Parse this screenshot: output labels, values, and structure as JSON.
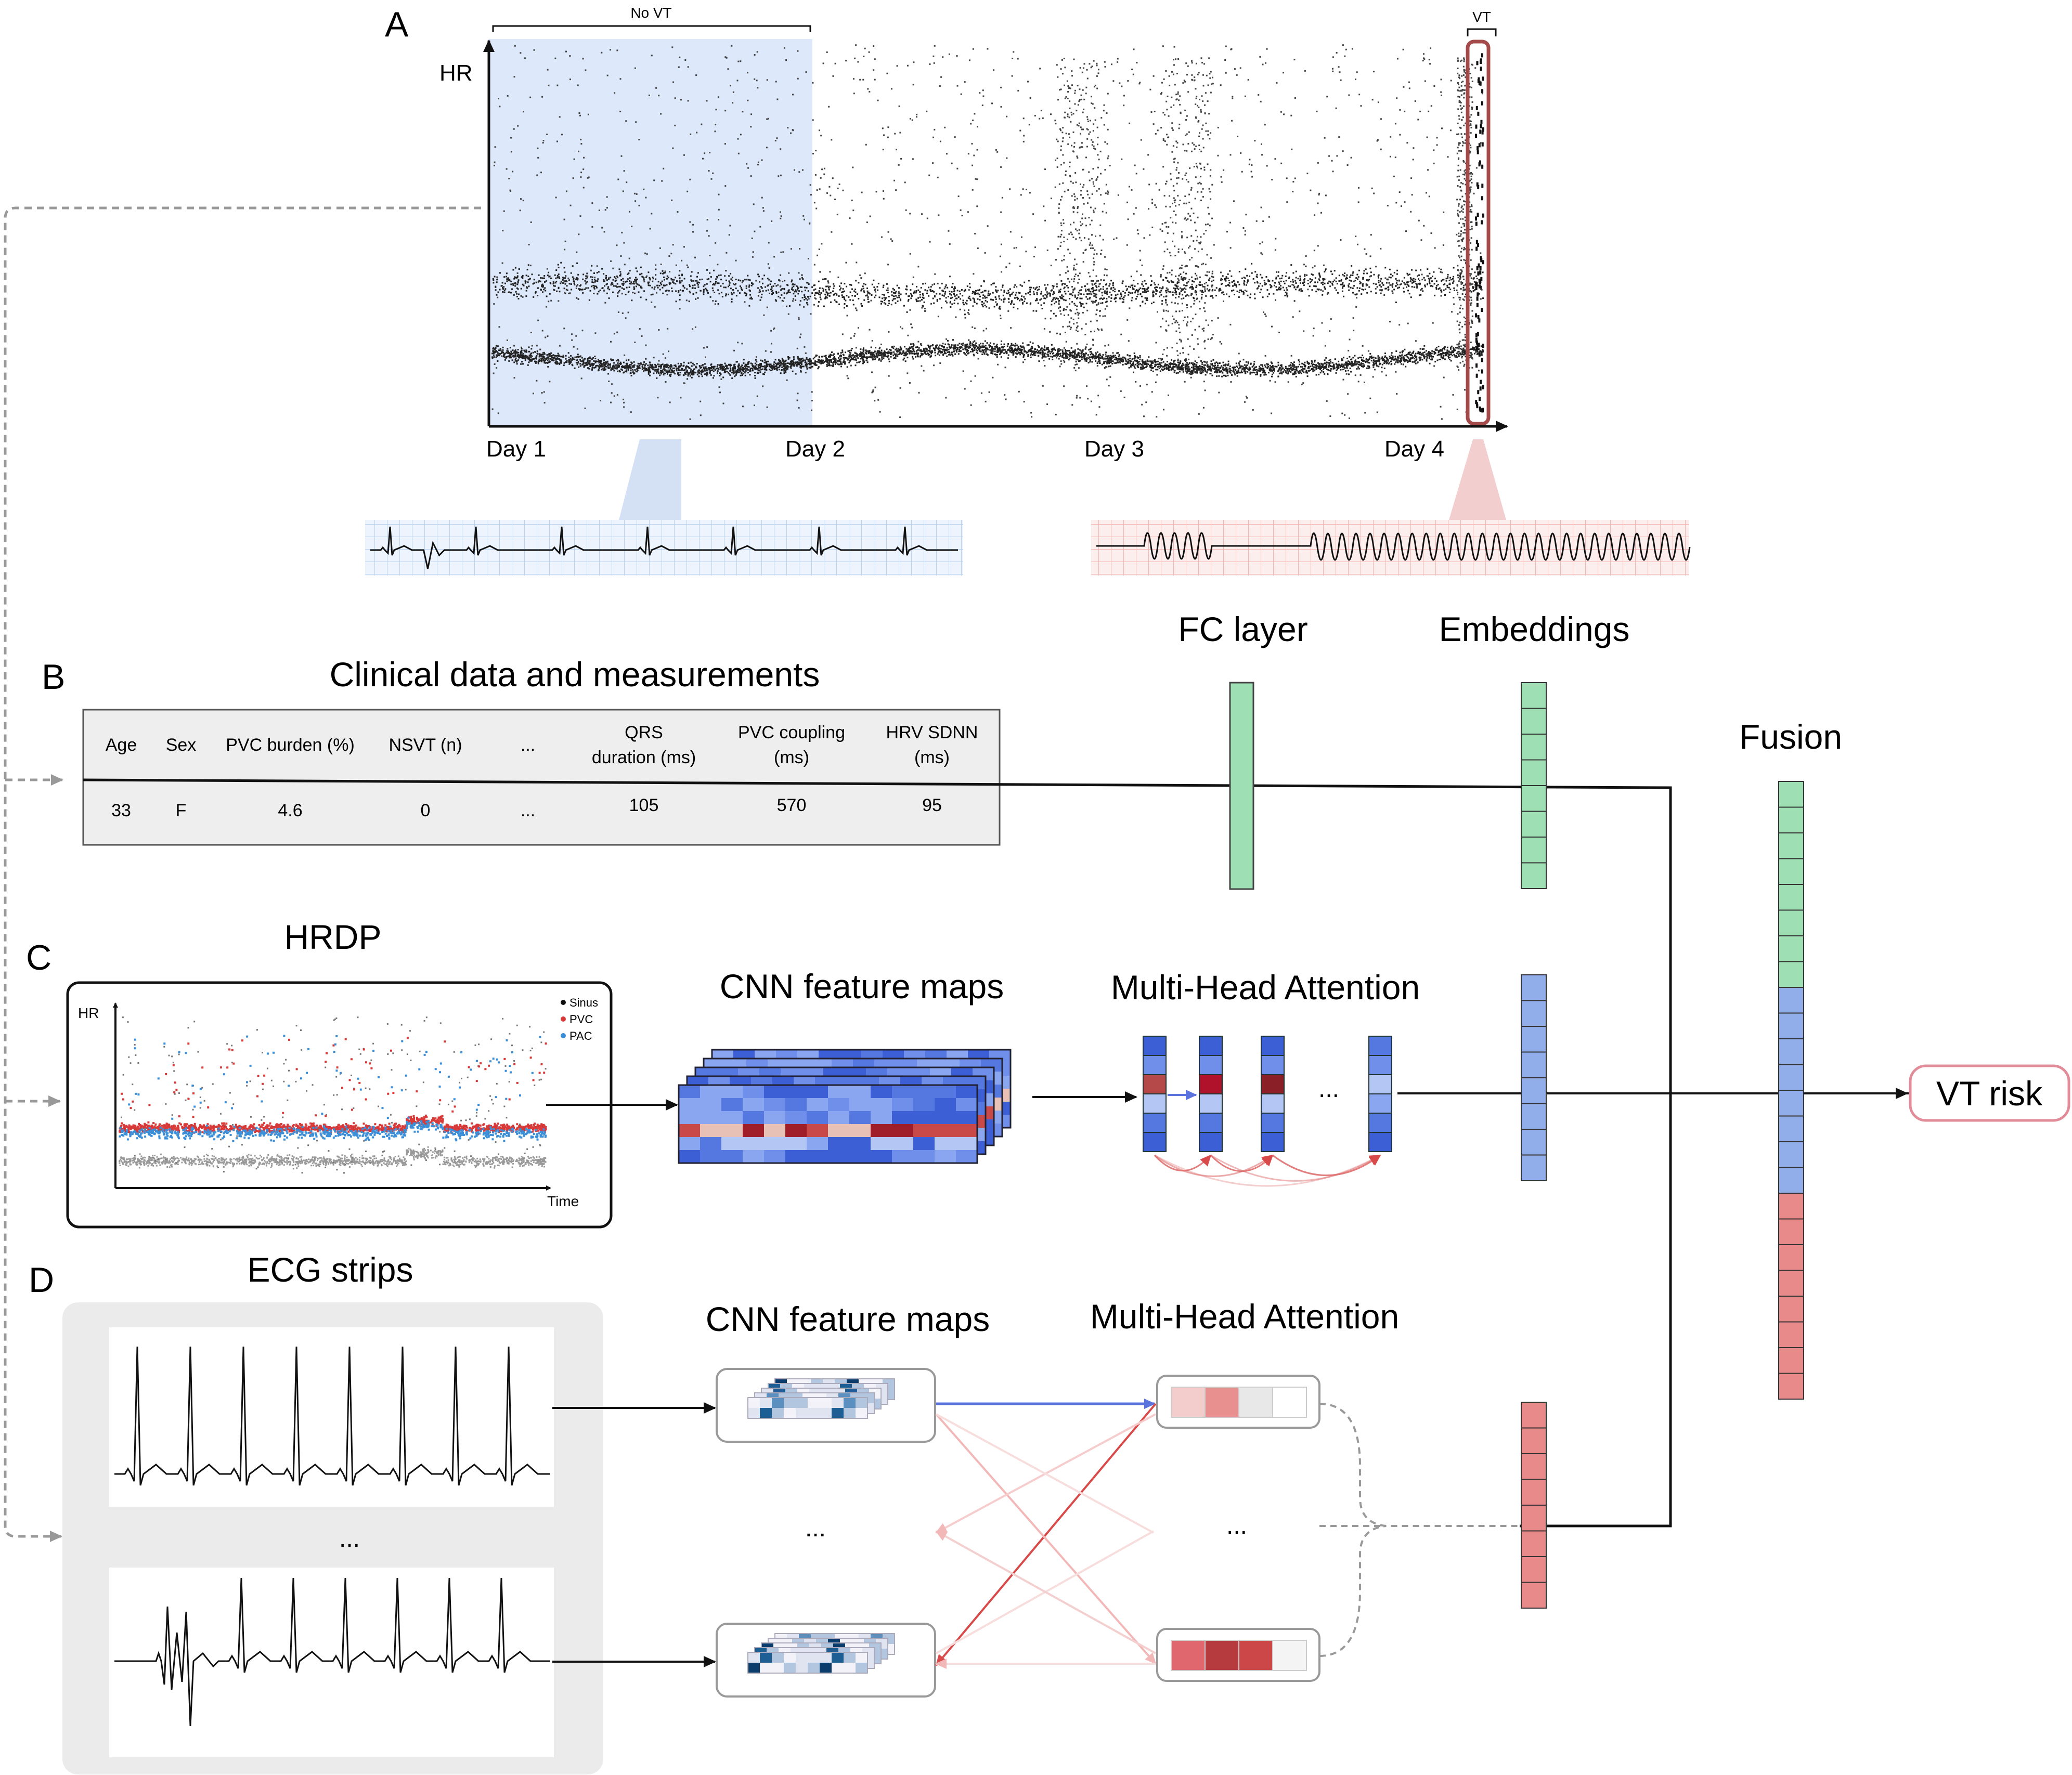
{
  "panels": {
    "a": "A",
    "b": "B",
    "c": "C",
    "d": "D"
  },
  "panel_a": {
    "y_label": "HR",
    "days": [
      "Day 1",
      "Day 2",
      "Day 3",
      "Day 4"
    ],
    "no_vt_label": "No VT",
    "vt_label": "VT"
  },
  "panel_b": {
    "title": "Clinical data and measurements",
    "columns": [
      {
        "header": [
          "Age"
        ],
        "value": "33"
      },
      {
        "header": [
          "Sex"
        ],
        "value": "F"
      },
      {
        "header": [
          "PVC burden (%)"
        ],
        "value": "4.6"
      },
      {
        "header": [
          "NSVT (n)"
        ],
        "value": "0"
      },
      {
        "header": [
          "..."
        ],
        "value": "..."
      },
      {
        "header": [
          "QRS",
          "duration (ms)"
        ],
        "value": "105"
      },
      {
        "header": [
          "PVC coupling",
          "(ms)"
        ],
        "value": "570"
      },
      {
        "header": [
          "HRV SDNN",
          "(ms)"
        ],
        "value": "95"
      }
    ]
  },
  "panel_c": {
    "title": "HRDP",
    "y_label": "HR",
    "x_label": "Time",
    "legend": [
      "Sinus",
      "PVC",
      "PAC"
    ]
  },
  "panel_d": {
    "title": "ECG strips",
    "ellipsis": "..."
  },
  "model": {
    "fc_layer": "FC layer",
    "embeddings": "Embeddings",
    "fusion": "Fusion",
    "cnn_maps_c": "CNN feature maps",
    "mha_c": "Multi-Head Attention",
    "cnn_maps_d": "CNN feature maps",
    "mha_d": "Multi-Head Attention",
    "ellipsis": "...",
    "output": "VT risk"
  },
  "colors": {
    "green": "#9ee0b4",
    "blue": "#92aeea",
    "red": "#e88a8a",
    "shade_blue": "#dde8fb",
    "grid_blue": "#b9d2f2",
    "grid_red": "#f6b5b5",
    "vt_box": "#a54a4a"
  }
}
